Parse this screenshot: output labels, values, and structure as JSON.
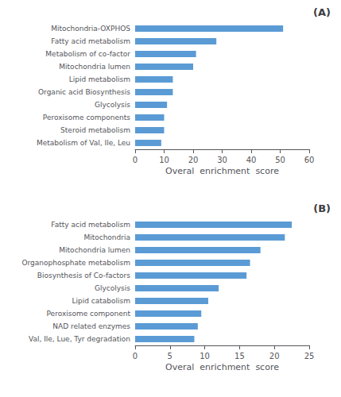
{
  "chart_data": [
    {
      "type": "bar",
      "orientation": "horizontal",
      "title": "(A)",
      "categories": [
        "Mitochondria-OXPHOS",
        "Fatty acid metabolism",
        "Metabolism of co-factor",
        "Mitochondria lumen",
        "Lipid metabolism",
        "Organic acid Biosynthesis",
        "Glycolysis",
        "Peroxisome components",
        "Steroid metabolism",
        "Metabolism of Val, Ile, Leu"
      ],
      "values": [
        51,
        28,
        21,
        20,
        13,
        13,
        11,
        10,
        10,
        9
      ],
      "color": "#5B9BD5",
      "x_label": "Overal  enrichment  score",
      "xlim": [
        0,
        60
      ],
      "xticks": [
        0,
        10,
        20,
        30,
        40,
        50,
        60
      ],
      "grid": false
    },
    {
      "type": "bar",
      "orientation": "horizontal",
      "title": "(B)",
      "categories": [
        "Fatty acid metabolism",
        "Mitochondria",
        "Mitochondria lumen",
        "Organophosphate metabolism",
        "Biosynthesis of Co-factors",
        "Glycolysis",
        "Lipid catabolism",
        "Peroxisome component",
        "NAD related enzymes",
        "Val, Ile, Lue, Tyr degradation"
      ],
      "values": [
        22.5,
        21.5,
        18,
        16.5,
        16,
        12,
        10.5,
        9.5,
        9,
        8.5
      ],
      "color": "#5B9BD5",
      "x_label": "Overal  enrichment  score",
      "xlim": [
        0,
        25
      ],
      "xticks": [
        0,
        5,
        10,
        15,
        20,
        25
      ],
      "grid": false
    }
  ]
}
